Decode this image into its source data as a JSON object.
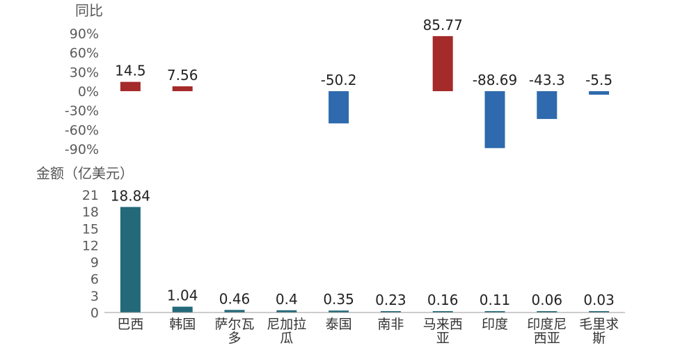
{
  "chart_data": [
    {
      "type": "bar",
      "title": "",
      "ylabel": "同比",
      "ylim": [
        -90,
        90
      ],
      "yticks": [
        "90%",
        "60%",
        "30%",
        "0%",
        "-30%",
        "-60%",
        "-90%"
      ],
      "categories": [
        "巴西",
        "韩国",
        "萨尔瓦多",
        "尼加拉瓜",
        "泰国",
        "南非",
        "马来西亚",
        "印度",
        "印度尼西亚",
        "毛里求斯"
      ],
      "values": [
        14.5,
        7.56,
        null,
        null,
        -50.2,
        null,
        85.77,
        -88.69,
        -43.3,
        -5.5
      ],
      "value_labels": [
        "14.5",
        "7.56",
        "",
        "",
        "-50.2",
        "",
        "85.77",
        "-88.69",
        "-43.3",
        "-5.5"
      ],
      "positive_color": "#a52a2a",
      "negative_color": "#2e6aad",
      "grid": false
    },
    {
      "type": "bar",
      "title": "",
      "ylabel": "金额（亿美元）",
      "ylim": [
        0,
        21
      ],
      "yticks": [
        "21",
        "18",
        "15",
        "12",
        "9",
        "6",
        "3",
        "0"
      ],
      "categories": [
        "巴西",
        "韩国",
        "萨尔瓦多",
        "尼加拉瓜",
        "泰国",
        "南非",
        "马来西亚",
        "印度",
        "印度尼西亚",
        "毛里求斯"
      ],
      "category_lines": [
        [
          "巴西"
        ],
        [
          "韩国"
        ],
        [
          "萨尔瓦",
          "多"
        ],
        [
          "尼加拉",
          "瓜"
        ],
        [
          "泰国"
        ],
        [
          "南非"
        ],
        [
          "马来西",
          "亚"
        ],
        [
          "印度"
        ],
        [
          "印度尼",
          "西亚"
        ],
        [
          "毛里求",
          "斯"
        ]
      ],
      "values": [
        18.84,
        1.04,
        0.46,
        0.4,
        0.35,
        0.23,
        0.16,
        0.11,
        0.06,
        0.03
      ],
      "value_labels": [
        "18.84",
        "1.04",
        "0.46",
        "0.4",
        "0.35",
        "0.23",
        "0.16",
        "0.11",
        "0.06",
        "0.03"
      ],
      "color": "#23697a",
      "grid": false
    }
  ]
}
